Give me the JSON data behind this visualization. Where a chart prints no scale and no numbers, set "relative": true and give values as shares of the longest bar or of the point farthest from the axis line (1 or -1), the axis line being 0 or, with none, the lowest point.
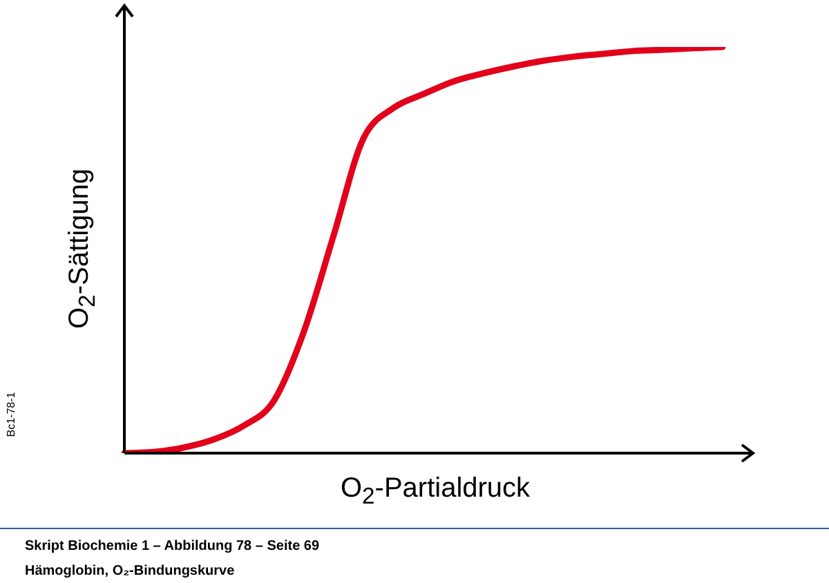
{
  "chart_data": {
    "type": "line",
    "relative": true,
    "xlabel": "O$_{2}$-Partialdruck",
    "ylabel": "O$_{2}$-Sättigung",
    "categories": [
      null,
      null,
      null,
      null,
      null,
      null,
      null,
      null,
      null,
      null,
      null,
      null,
      null,
      null,
      null,
      null,
      null,
      null,
      null,
      null,
      null
    ],
    "series": [
      {
        "color": "#e2001a",
        "values": [
          0,
          0.003,
          0.014,
          0.034,
          0.068,
          0.129,
          0.299,
          0.537,
          0.776,
          0.85,
          0.884,
          0.915,
          0.935,
          0.952,
          0.966,
          0.976,
          0.983,
          0.99,
          0.993,
          0.997,
          1
        ]
      }
    ],
    "marker": "none",
    "grid": false,
    "legend": false,
    "annotations": [
      "Bc1-78-1",
      "Skript Biochemie 1 – Abbildung 78 – Seite 69",
      "Hämoglobin, O₂-Bindungskurve"
    ]
  }
}
